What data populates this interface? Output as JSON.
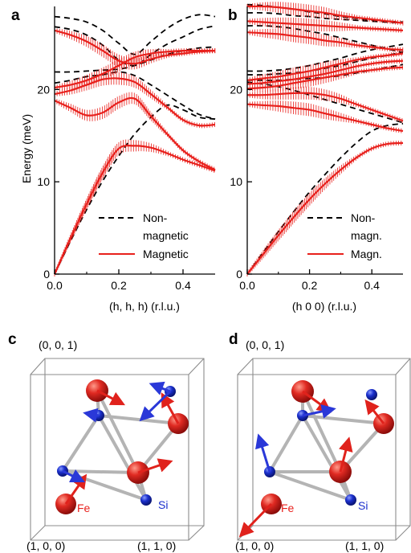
{
  "colors": {
    "magnetic": "#e8201c",
    "nonmagnetic": "#000000",
    "fe": "#d42020",
    "si": "#1a2fcc",
    "bond": "#b4b4b4",
    "box": "#8c8c8c",
    "arrow_red": "#e0221c",
    "arrow_blue": "#2a38d8"
  },
  "chart_data": [
    {
      "panel": "a",
      "type": "line",
      "xlabel": "(h, h, h) (r.l.u.)",
      "ylabel": "Energy (meV)",
      "xlim": [
        0,
        0.5
      ],
      "ylim": [
        0,
        29
      ],
      "xticks": [
        0.0,
        0.2,
        0.4
      ],
      "xtick_labels": [
        "0.0",
        "0.2",
        "0.4"
      ],
      "yticks": [
        0,
        10,
        20
      ],
      "ytick_labels": [
        "0",
        "10",
        "20"
      ],
      "legend": [
        "Non-\nmagnetic",
        "Magnetic"
      ],
      "legend_lines": [
        "Non-",
        "magnetic",
        "Magnetic"
      ],
      "legend_position": "bottom-right",
      "series": [
        {
          "name": "Non-magnetic",
          "style": "dashed",
          "x": [
            0,
            0.05,
            0.1,
            0.15,
            0.2,
            0.25,
            0.3,
            0.35,
            0.4,
            0.45,
            0.5
          ],
          "values": [
            0,
            3.6,
            7.0,
            10.1,
            12.8,
            15.2,
            17.0,
            18.3,
            17.8,
            17.0,
            16.8
          ]
        },
        {
          "name": "Non-magnetic",
          "style": "dashed",
          "x": [
            0,
            0.05,
            0.1,
            0.15,
            0.2,
            0.25,
            0.3,
            0.35,
            0.4,
            0.45,
            0.5
          ],
          "values": [
            20.7,
            21.0,
            21.4,
            21.6,
            21.9,
            21.5,
            20.5,
            19.4,
            18.3,
            17.3,
            16.8
          ]
        },
        {
          "name": "Non-magnetic",
          "style": "dashed",
          "x": [
            0,
            0.05,
            0.1,
            0.15,
            0.2,
            0.25,
            0.3,
            0.35,
            0.4,
            0.45,
            0.5
          ],
          "values": [
            21.9,
            21.9,
            22.0,
            22.1,
            22.2,
            22.6,
            23.2,
            23.8,
            24.2,
            24.5,
            24.6
          ]
        },
        {
          "name": "Non-magnetic",
          "style": "dashed",
          "x": [
            0,
            0.05,
            0.1,
            0.15,
            0.2,
            0.25,
            0.3,
            0.35,
            0.4,
            0.45,
            0.5
          ],
          "values": [
            26.8,
            26.5,
            25.9,
            24.8,
            23.2,
            22.6,
            23.8,
            24.9,
            25.7,
            26.5,
            26.9
          ]
        },
        {
          "name": "Non-magnetic",
          "style": "dashed",
          "x": [
            0,
            0.05,
            0.1,
            0.15,
            0.2,
            0.25,
            0.3,
            0.35,
            0.4,
            0.45,
            0.5
          ],
          "values": [
            27.9,
            27.7,
            27.3,
            26.4,
            25.0,
            23.8,
            25.2,
            26.6,
            27.6,
            28.1,
            27.9
          ]
        },
        {
          "name": "Magnetic",
          "style": "solid",
          "x": [
            0,
            0.05,
            0.1,
            0.15,
            0.2,
            0.25,
            0.3,
            0.35,
            0.4,
            0.45,
            0.5
          ],
          "values": [
            0,
            3.9,
            7.6,
            11.0,
            13.6,
            13.9,
            13.7,
            13.1,
            12.4,
            11.8,
            11.2
          ]
        },
        {
          "name": "Magnetic",
          "style": "solid",
          "x": [
            0,
            0.05,
            0.1,
            0.15,
            0.2,
            0.25,
            0.3,
            0.35,
            0.4,
            0.45,
            0.5
          ],
          "values": [
            18.8,
            18.0,
            17.2,
            17.5,
            18.6,
            19.0,
            17.1,
            15.2,
            13.4,
            12.2,
            11.3
          ]
        },
        {
          "name": "Magnetic",
          "style": "solid",
          "x": [
            0,
            0.05,
            0.1,
            0.15,
            0.2,
            0.25,
            0.3,
            0.35,
            0.4,
            0.45,
            0.5
          ],
          "values": [
            19.5,
            19.9,
            20.5,
            21.1,
            21.2,
            20.8,
            19.5,
            18.1,
            16.7,
            16.1,
            16.2
          ]
        },
        {
          "name": "Magnetic",
          "style": "solid",
          "x": [
            0,
            0.05,
            0.1,
            0.15,
            0.2,
            0.25,
            0.3,
            0.35,
            0.4,
            0.45,
            0.5
          ],
          "values": [
            20.2,
            20.5,
            21.0,
            21.7,
            22.6,
            23.5,
            23.9,
            24.1,
            24.2,
            24.2,
            24.2
          ]
        },
        {
          "name": "Magnetic",
          "style": "solid",
          "x": [
            0,
            0.05,
            0.1,
            0.15,
            0.2,
            0.25,
            0.3,
            0.35,
            0.4,
            0.45,
            0.5
          ],
          "values": [
            26.4,
            25.9,
            25.2,
            24.2,
            23.1,
            22.8,
            23.3,
            23.7,
            23.9,
            24.1,
            24.2
          ]
        }
      ]
    },
    {
      "panel": "b",
      "type": "line",
      "xlabel": "(h 0 0) (r.l.u.)",
      "ylabel": "",
      "xlim": [
        0,
        0.5
      ],
      "ylim": [
        0,
        29
      ],
      "xticks": [
        0.0,
        0.2,
        0.4
      ],
      "xtick_labels": [
        "0.0",
        "0.2",
        "0.4"
      ],
      "yticks": [
        0,
        10,
        20
      ],
      "ytick_labels": [
        "0",
        "10",
        "20"
      ],
      "legend": [
        "Non-\nmagn.",
        "Magn."
      ],
      "legend_lines": [
        "Non-",
        "magn.",
        "Magn."
      ],
      "legend_position": "bottom-right",
      "series": [
        {
          "name": "Non-magn.",
          "style": "dashed",
          "x": [
            0,
            0.05,
            0.1,
            0.15,
            0.2,
            0.25,
            0.3,
            0.35,
            0.4,
            0.45,
            0.5
          ],
          "values": [
            0,
            2.3,
            4.6,
            6.8,
            8.9,
            10.8,
            12.6,
            14.2,
            15.5,
            16.1,
            16.3
          ]
        },
        {
          "name": "Non-magn.",
          "style": "dashed",
          "x": [
            0,
            0.05,
            0.1,
            0.15,
            0.2,
            0.25,
            0.3,
            0.35,
            0.4,
            0.45,
            0.5
          ],
          "values": [
            20.8,
            20.6,
            20.3,
            19.9,
            19.4,
            18.9,
            18.4,
            17.9,
            17.4,
            16.9,
            16.4
          ]
        },
        {
          "name": "Non-magn.",
          "style": "dashed",
          "x": [
            0,
            0.05,
            0.1,
            0.15,
            0.2,
            0.25,
            0.3,
            0.35,
            0.4,
            0.45,
            0.5
          ],
          "values": [
            21.0,
            21.0,
            21.0,
            21.1,
            21.2,
            21.3,
            21.5,
            21.8,
            22.1,
            22.4,
            22.7
          ]
        },
        {
          "name": "Non-magn.",
          "style": "dashed",
          "x": [
            0,
            0.05,
            0.1,
            0.15,
            0.2,
            0.25,
            0.3,
            0.35,
            0.4,
            0.45,
            0.5
          ],
          "values": [
            21.6,
            21.6,
            21.7,
            21.8,
            22.0,
            22.3,
            22.6,
            23.0,
            23.4,
            23.7,
            24.1
          ]
        },
        {
          "name": "Non-magn.",
          "style": "dashed",
          "x": [
            0,
            0.05,
            0.1,
            0.15,
            0.2,
            0.25,
            0.3,
            0.35,
            0.4,
            0.45,
            0.5
          ],
          "values": [
            22.0,
            22.0,
            22.1,
            22.3,
            22.6,
            23.0,
            23.4,
            23.9,
            24.3,
            24.6,
            24.9
          ]
        },
        {
          "name": "Non-magn.",
          "style": "dashed",
          "x": [
            0,
            0.05,
            0.1,
            0.15,
            0.2,
            0.25,
            0.3,
            0.35,
            0.4,
            0.45,
            0.5
          ],
          "values": [
            26.9,
            26.9,
            26.8,
            26.6,
            26.3,
            26.0,
            25.6,
            25.2,
            24.8,
            24.4,
            24.0
          ]
        },
        {
          "name": "Non-magn.",
          "style": "dashed",
          "x": [
            0,
            0.05,
            0.1,
            0.15,
            0.2,
            0.25,
            0.3,
            0.35,
            0.4,
            0.45,
            0.5
          ],
          "values": [
            28.3,
            28.3,
            28.2,
            28.0,
            27.9,
            27.7,
            27.6,
            27.5,
            27.4,
            27.3,
            27.2
          ]
        },
        {
          "name": "Non-magn.",
          "style": "dashed",
          "x": [
            0,
            0.05,
            0.1,
            0.15,
            0.2,
            0.25,
            0.3,
            0.35,
            0.4,
            0.45,
            0.5
          ],
          "values": [
            29.2,
            29.1,
            28.9,
            28.7,
            28.4,
            28.2,
            27.9,
            27.7,
            27.5,
            27.4,
            27.3
          ]
        },
        {
          "name": "Magn.",
          "style": "solid",
          "x": [
            0,
            0.05,
            0.1,
            0.15,
            0.2,
            0.25,
            0.3,
            0.35,
            0.4,
            0.45,
            0.5
          ],
          "values": [
            0,
            2.1,
            4.2,
            6.2,
            8.1,
            9.8,
            11.3,
            12.6,
            13.6,
            14.1,
            14.2
          ]
        },
        {
          "name": "Magn.",
          "style": "solid",
          "x": [
            0,
            0.05,
            0.1,
            0.15,
            0.2,
            0.25,
            0.3,
            0.35,
            0.4,
            0.45,
            0.5
          ],
          "values": [
            18.4,
            18.3,
            18.2,
            18.0,
            17.8,
            17.4,
            17.0,
            16.6,
            16.2,
            15.8,
            15.5
          ]
        },
        {
          "name": "Magn.",
          "style": "solid",
          "x": [
            0,
            0.05,
            0.1,
            0.15,
            0.2,
            0.25,
            0.3,
            0.35,
            0.4,
            0.45,
            0.5
          ],
          "values": [
            19.4,
            19.4,
            19.5,
            19.6,
            19.6,
            19.4,
            19.0,
            18.4,
            17.8,
            17.2,
            16.6
          ]
        },
        {
          "name": "Magn.",
          "style": "solid",
          "x": [
            0,
            0.05,
            0.1,
            0.15,
            0.2,
            0.25,
            0.3,
            0.35,
            0.4,
            0.45,
            0.5
          ],
          "values": [
            20.1,
            20.2,
            20.4,
            20.7,
            21.0,
            21.3,
            21.6,
            21.9,
            22.1,
            22.3,
            22.4
          ]
        },
        {
          "name": "Magn.",
          "style": "solid",
          "x": [
            0,
            0.05,
            0.1,
            0.15,
            0.2,
            0.25,
            0.3,
            0.35,
            0.4,
            0.45,
            0.5
          ],
          "values": [
            20.6,
            20.7,
            20.9,
            21.1,
            21.4,
            21.7,
            22.1,
            22.5,
            22.8,
            23.0,
            23.1
          ]
        },
        {
          "name": "Magn.",
          "style": "solid",
          "x": [
            0,
            0.05,
            0.1,
            0.15,
            0.2,
            0.25,
            0.3,
            0.35,
            0.4,
            0.45,
            0.5
          ],
          "values": [
            21.0,
            21.2,
            21.4,
            21.7,
            22.0,
            22.4,
            22.8,
            23.2,
            23.5,
            23.7,
            23.9
          ]
        },
        {
          "name": "Magn.",
          "style": "solid",
          "x": [
            0,
            0.05,
            0.1,
            0.15,
            0.2,
            0.25,
            0.3,
            0.35,
            0.4,
            0.45,
            0.5
          ],
          "values": [
            26.2,
            26.1,
            26.0,
            25.8,
            25.6,
            25.3,
            25.1,
            24.8,
            24.6,
            24.4,
            24.3
          ]
        },
        {
          "name": "Magn.",
          "style": "solid",
          "x": [
            0,
            0.05,
            0.1,
            0.15,
            0.2,
            0.25,
            0.3,
            0.35,
            0.4,
            0.45,
            0.5
          ],
          "values": [
            27.4,
            27.3,
            27.2,
            27.1,
            27.0,
            26.9,
            26.8,
            26.7,
            26.6,
            26.5,
            26.4
          ]
        },
        {
          "name": "Magn.",
          "style": "solid",
          "x": [
            0,
            0.05,
            0.1,
            0.15,
            0.2,
            0.25,
            0.3,
            0.35,
            0.4,
            0.45,
            0.5
          ],
          "values": [
            29.0,
            29.0,
            28.9,
            28.7,
            28.5,
            28.3,
            28.0,
            27.8,
            27.6,
            27.4,
            27.2
          ]
        }
      ]
    }
  ],
  "structures": [
    {
      "panel": "c",
      "labels": {
        "top": "(0, 0, 1)",
        "bottom_left": "(1, 0, 0)",
        "bottom_right": "(1, 1, 0)",
        "fe": "Fe",
        "si": "Si"
      }
    },
    {
      "panel": "d",
      "labels": {
        "top": "(0, 0, 1)",
        "bottom_left": "(1, 0, 0)",
        "bottom_right": "(1, 1, 0)",
        "fe": "Fe",
        "si": "Si"
      }
    }
  ]
}
